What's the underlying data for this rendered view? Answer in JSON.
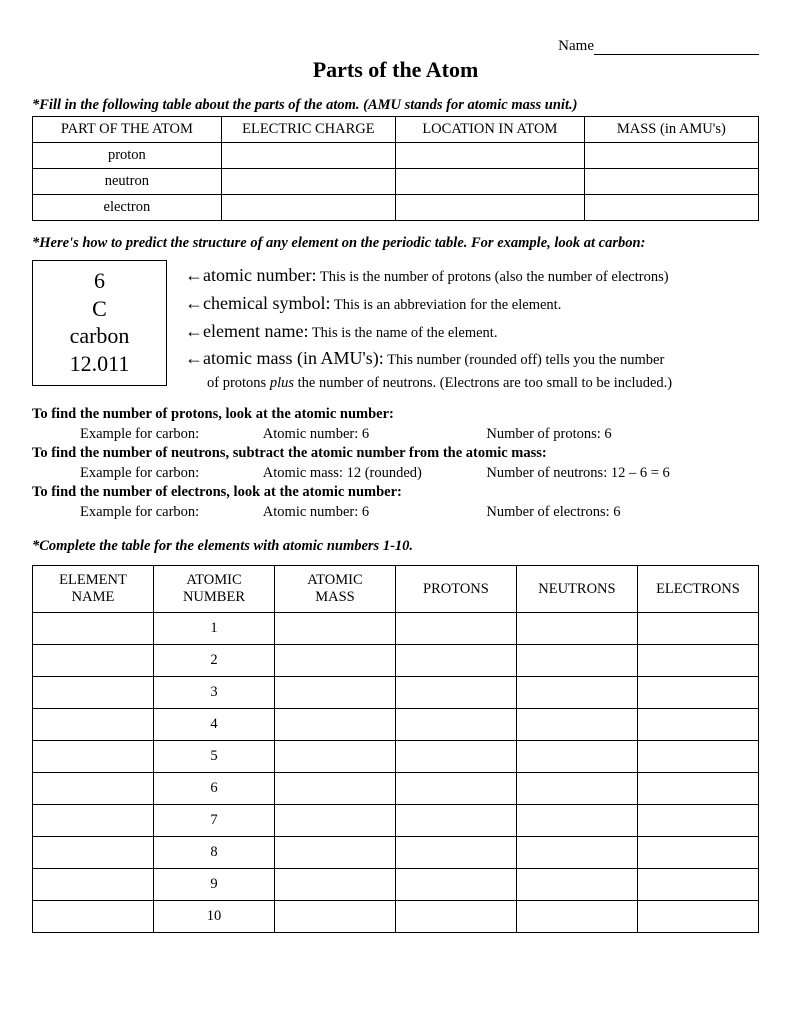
{
  "header": {
    "name_label": "Name"
  },
  "title": "Parts of the Atom",
  "instruction1": "*Fill in the following table about the parts of the atom.   (AMU stands for atomic mass unit.)",
  "table1": {
    "headers": [
      "PART OF THE ATOM",
      "ELECTRIC CHARGE",
      "LOCATION IN ATOM",
      "MASS (in AMU's)"
    ],
    "rows": [
      "proton",
      "neutron",
      "electron"
    ]
  },
  "instruction_carbon": "*Here's how to predict the structure of any element on the periodic table.  For example, look at carbon:",
  "element_box": {
    "atomic_number": "6",
    "symbol": "C",
    "name": "carbon",
    "mass": "12.011"
  },
  "defs": {
    "l1_term": "atomic number:",
    "l1_desc": " This is the number of protons (also the number of electrons)",
    "l2_term": "chemical symbol:",
    "l2_desc": "  This is an abbreviation for the element.",
    "l3_term": "element name:",
    "l3_desc": "  This is the name of the element.",
    "l4_term": "atomic mass (in AMU's):",
    "l4_desc": "  This number (rounded off) tells you the number",
    "l4_cont1": "of protons ",
    "l4_plus": "plus",
    "l4_cont2": " the number of neutrons. (Electrons are too small to be included.)"
  },
  "find": {
    "protons_h": "To find the number of protons, look at the atomic number:",
    "protons_ex_label": "Example for carbon:",
    "protons_ex_mid": "Atomic number:  6",
    "protons_ex_right": "Number of protons:  6",
    "neutrons_h": "To find the number of neutrons, subtract the atomic number from the atomic mass:",
    "neutrons_ex_label": "Example for carbon:",
    "neutrons_ex_mid": "Atomic mass:  12 (rounded)",
    "neutrons_ex_right": "Number of neutrons:  12 – 6 = 6",
    "electrons_h": "To find the number of electrons, look at the atomic number:",
    "electrons_ex_label": "Example for carbon:",
    "electrons_ex_mid": "Atomic number:  6",
    "electrons_ex_right": "Number of electrons:  6"
  },
  "instruction2": "*Complete the table for the elements with atomic numbers 1-10.",
  "table2": {
    "headers": {
      "c1a": "ELEMENT",
      "c1b": "NAME",
      "c2a": "ATOMIC",
      "c2b": "NUMBER",
      "c3a": "ATOMIC",
      "c3b": "MASS",
      "c4": "PROTONS",
      "c5": "NEUTRONS",
      "c6": "ELECTRONS"
    },
    "atomic_numbers": [
      "1",
      "2",
      "3",
      "4",
      "5",
      "6",
      "7",
      "8",
      "9",
      "10"
    ]
  },
  "arrow_glyph": "←"
}
